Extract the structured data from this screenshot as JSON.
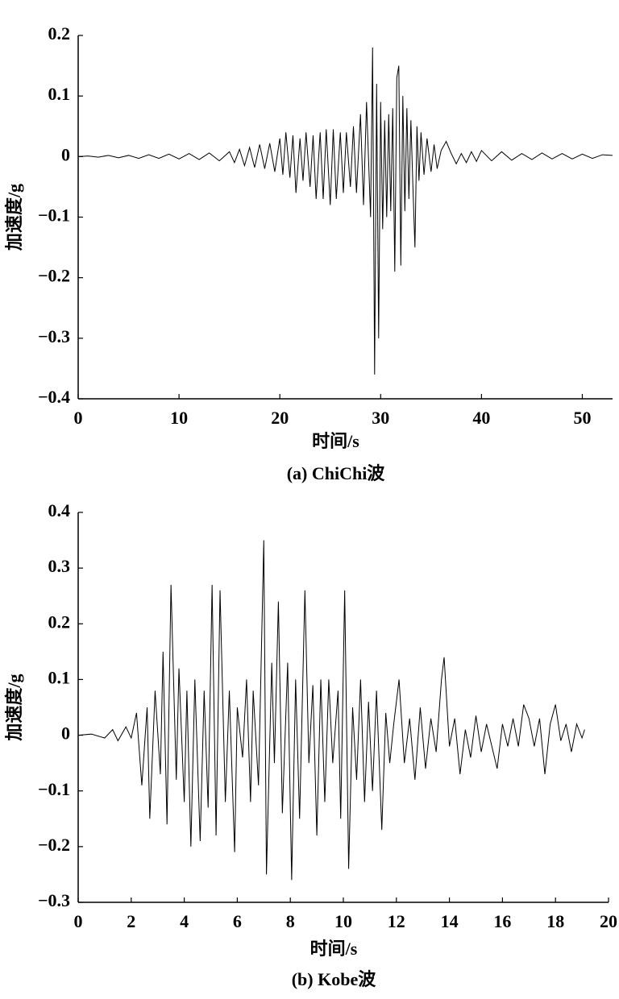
{
  "chart_data": [
    {
      "type": "line",
      "y_label": "加速度/g",
      "x_label": "时间/s",
      "caption": "(a) ChiChi波",
      "color": "#000000",
      "xlim": [
        0,
        53
      ],
      "ylim": [
        -0.4,
        0.2
      ],
      "xticks": [
        0,
        10,
        20,
        30,
        40,
        50
      ],
      "yticks": [
        0.2,
        0.1,
        0,
        {
          "value": -0.1,
          "label": "−0.1"
        },
        {
          "value": -0.2,
          "label": "−0.2"
        },
        {
          "value": -0.3,
          "label": "−0.3"
        },
        {
          "value": -0.4,
          "label": "−0.4"
        }
      ],
      "x": [
        0,
        1,
        2,
        3,
        4,
        5,
        6,
        7,
        8,
        9,
        10,
        11,
        12,
        13,
        14,
        15,
        15.5,
        16,
        16.5,
        17,
        17.5,
        18,
        18.5,
        19,
        19.5,
        20,
        20.3,
        20.6,
        21,
        21.3,
        21.6,
        22,
        22.3,
        22.6,
        23,
        23.3,
        23.6,
        24,
        24.3,
        24.6,
        25,
        25.3,
        25.6,
        26,
        26.3,
        26.6,
        27,
        27.3,
        27.6,
        28,
        28.3,
        28.6,
        29,
        29.2,
        29.4,
        29.6,
        29.8,
        30,
        30.2,
        30.4,
        30.6,
        30.8,
        31,
        31.2,
        31.4,
        31.6,
        31.8,
        32,
        32.2,
        32.4,
        32.6,
        32.8,
        33,
        33.2,
        33.4,
        33.6,
        33.8,
        34,
        34.3,
        34.6,
        35,
        35.3,
        35.6,
        36,
        36.5,
        37,
        37.5,
        38,
        38.5,
        39,
        39.5,
        40,
        41,
        42,
        43,
        44,
        45,
        46,
        47,
        48,
        49,
        50,
        51,
        52,
        53
      ],
      "values": [
        0,
        0.001,
        -0.001,
        0.002,
        -0.002,
        0.002,
        -0.003,
        0.003,
        -0.003,
        0.004,
        -0.004,
        0.005,
        -0.005,
        0.006,
        -0.007,
        0.008,
        -0.01,
        0.012,
        -0.015,
        0.015,
        -0.018,
        0.02,
        -0.02,
        0.022,
        -0.025,
        0.03,
        -0.03,
        0.04,
        -0.035,
        0.035,
        -0.06,
        0.03,
        -0.04,
        0.04,
        -0.05,
        0.035,
        -0.07,
        0.04,
        -0.07,
        0.045,
        -0.08,
        0.045,
        -0.07,
        0.04,
        -0.06,
        0.04,
        -0.05,
        0.05,
        -0.06,
        0.07,
        -0.08,
        0.09,
        -0.1,
        0.18,
        -0.36,
        0.12,
        -0.3,
        0.09,
        -0.12,
        0.06,
        -0.1,
        0.07,
        -0.09,
        0.08,
        -0.19,
        0.13,
        0.15,
        -0.18,
        0.1,
        -0.09,
        0.08,
        -0.07,
        0.06,
        -0.05,
        -0.15,
        0.05,
        -0.04,
        0.04,
        -0.03,
        0.03,
        -0.025,
        0.02,
        -0.02,
        0.01,
        0.025,
        0.005,
        -0.012,
        0.005,
        -0.01,
        0.008,
        -0.008,
        0.01,
        -0.007,
        0.008,
        -0.006,
        0.005,
        -0.005,
        0.006,
        -0.004,
        0.005,
        -0.004,
        0.004,
        -0.003,
        0.003,
        0.002
      ]
    },
    {
      "type": "line",
      "y_label": "加速度/g",
      "x_label": "时间/s",
      "caption": "(b) Kobe波",
      "color": "#000000",
      "xlim": [
        0,
        20
      ],
      "ylim": [
        -0.3,
        0.4
      ],
      "xticks": [
        0,
        2,
        4,
        6,
        8,
        10,
        12,
        14,
        16,
        18,
        20
      ],
      "yticks": [
        0.4,
        0.3,
        0.2,
        0.1,
        0,
        {
          "value": -0.1,
          "label": "−0.1"
        },
        {
          "value": -0.2,
          "label": "−0.2"
        },
        {
          "value": -0.3,
          "label": "−0.3"
        }
      ],
      "x": [
        0,
        0.5,
        1,
        1.3,
        1.5,
        1.8,
        2,
        2.2,
        2.4,
        2.6,
        2.7,
        2.9,
        3.1,
        3.2,
        3.35,
        3.5,
        3.7,
        3.8,
        4.0,
        4.1,
        4.25,
        4.4,
        4.6,
        4.75,
        4.9,
        5.05,
        5.2,
        5.35,
        5.55,
        5.7,
        5.9,
        6.0,
        6.2,
        6.35,
        6.5,
        6.6,
        6.8,
        7.0,
        7.1,
        7.3,
        7.4,
        7.55,
        7.7,
        7.9,
        8.05,
        8.2,
        8.35,
        8.55,
        8.7,
        8.85,
        9.0,
        9.15,
        9.3,
        9.45,
        9.6,
        9.8,
        9.9,
        10.05,
        10.2,
        10.35,
        10.5,
        10.65,
        10.8,
        10.95,
        11.1,
        11.25,
        11.45,
        11.6,
        11.75,
        11.9,
        12.1,
        12.3,
        12.5,
        12.7,
        12.9,
        13.1,
        13.3,
        13.5,
        13.7,
        13.8,
        14.0,
        14.2,
        14.4,
        14.6,
        14.8,
        15.0,
        15.2,
        15.4,
        15.6,
        15.8,
        16.0,
        16.2,
        16.4,
        16.6,
        16.8,
        17.0,
        17.2,
        17.4,
        17.6,
        17.8,
        18.0,
        18.2,
        18.4,
        18.6,
        18.8,
        19.0,
        19.1
      ],
      "values": [
        0,
        0.002,
        -0.005,
        0.01,
        -0.01,
        0.015,
        -0.005,
        0.04,
        -0.09,
        0.05,
        -0.15,
        0.08,
        -0.07,
        0.15,
        -0.16,
        0.27,
        -0.08,
        0.12,
        -0.12,
        0.08,
        -0.2,
        0.1,
        -0.19,
        0.08,
        -0.13,
        0.27,
        -0.18,
        0.26,
        -0.12,
        0.08,
        -0.21,
        0.05,
        -0.04,
        0.1,
        -0.12,
        0.08,
        -0.09,
        0.35,
        -0.25,
        0.13,
        -0.05,
        0.24,
        -0.14,
        0.13,
        -0.26,
        0.1,
        -0.15,
        0.26,
        -0.05,
        0.09,
        -0.18,
        0.1,
        -0.12,
        0.1,
        -0.05,
        0.08,
        -0.15,
        0.26,
        -0.24,
        0.05,
        -0.08,
        0.1,
        -0.12,
        0.06,
        -0.1,
        0.08,
        -0.17,
        0.04,
        -0.05,
        0.02,
        0.1,
        -0.05,
        0.03,
        -0.08,
        0.05,
        -0.06,
        0.03,
        -0.03,
        0.1,
        0.14,
        -0.02,
        0.03,
        -0.07,
        0.01,
        -0.04,
        0.035,
        -0.03,
        0.02,
        -0.02,
        -0.06,
        0.02,
        -0.02,
        0.03,
        -0.02,
        0.055,
        0.03,
        -0.02,
        0.03,
        -0.07,
        0.02,
        0.055,
        -0.01,
        0.02,
        -0.03,
        0.02,
        -0.005,
        0.01
      ]
    }
  ]
}
